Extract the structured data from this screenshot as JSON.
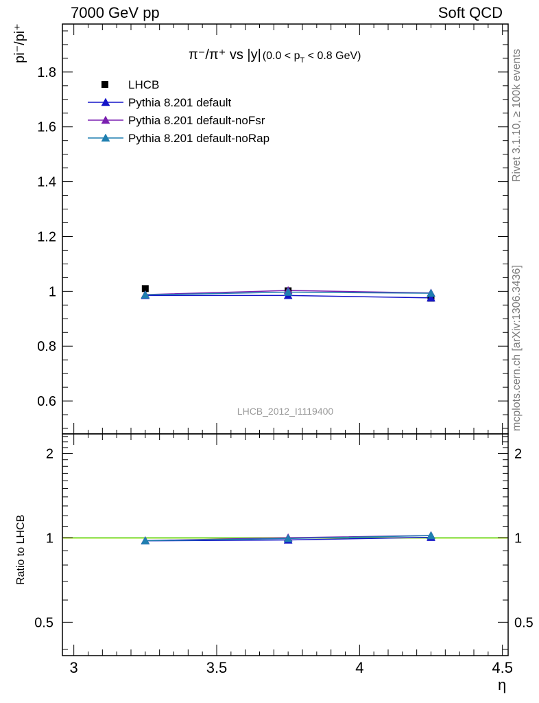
{
  "header": {
    "left": "7000 GeV pp",
    "right": "Soft QCD"
  },
  "side_labels": {
    "rivet": "Rivet 3.1.10, ≥ 100k events",
    "mcplots": "mcplots.cern.ch [arXiv:1306.3436]"
  },
  "plot_title": {
    "main": "π⁻/π⁺ vs |y|",
    "range": "(0.0 < p",
    "range_sub": "T",
    "range_end": " < 0.8 GeV)"
  },
  "analysis_id": "LHCB_2012_I1119400",
  "axes": {
    "ylabel_top": "pi⁻/pi⁺",
    "ylabel_bottom": "Ratio to LHCB",
    "xlabel": "η"
  },
  "colors": {
    "data": "#000000",
    "default": "#1515c8",
    "noFsr": "#7a1fb0",
    "noRap": "#1f7fb0",
    "band_yellow": "#f2f200",
    "band_green": "#50d250"
  },
  "chart_data": [
    {
      "type": "scatter",
      "panel": "main",
      "xlim": [
        2.96,
        4.52
      ],
      "ylim": [
        0.48,
        1.975
      ],
      "yticks": [
        0.6,
        0.8,
        1.0,
        1.2,
        1.4,
        1.6,
        1.8
      ],
      "ytick_labels": [
        "0.6",
        "0.8",
        "1",
        "1.2",
        "1.4",
        "1.6",
        "1.8"
      ],
      "legend": {
        "placement": "top-left"
      },
      "series": [
        {
          "name": "LHCB",
          "marker": "square",
          "color": "#000000",
          "x": [
            3.25,
            3.75,
            4.25
          ],
          "y": [
            1.01,
            1.002,
            0.975
          ]
        },
        {
          "name": "Pythia 8.201 default",
          "marker": "triangle",
          "color": "#1515c8",
          "x": [
            3.25,
            3.75,
            4.25
          ],
          "y": [
            0.985,
            0.985,
            0.976
          ]
        },
        {
          "name": "Pythia 8.201 default-noFsr",
          "marker": "triangle",
          "color": "#7a1fb0",
          "x": [
            3.25,
            3.75,
            4.25
          ],
          "y": [
            0.988,
            1.003,
            0.994
          ]
        },
        {
          "name": "Pythia 8.201 default-noRap",
          "marker": "triangle",
          "color": "#1f7fb0",
          "x": [
            3.25,
            3.75,
            4.25
          ],
          "y": [
            0.987,
            0.997,
            0.993
          ]
        }
      ]
    },
    {
      "type": "line",
      "panel": "ratio",
      "xlim": [
        2.96,
        4.52
      ],
      "ylim": [
        0.38,
        2.35
      ],
      "log_y": true,
      "yticks": [
        0.5,
        1,
        2
      ],
      "ytick_labels": [
        "0.5",
        "1",
        "2"
      ],
      "xticks": [
        3,
        3.5,
        4,
        4.5
      ],
      "xtick_labels": [
        "3",
        "3.5",
        "4",
        "4.5"
      ],
      "series": [
        {
          "name": "Pythia 8.201 default",
          "color": "#1515c8",
          "x": [
            3.25,
            3.75,
            4.25
          ],
          "y": [
            0.976,
            0.983,
            1.005
          ]
        },
        {
          "name": "Pythia 8.201 default-noFsr",
          "color": "#7a1fb0",
          "x": [
            3.25,
            3.75,
            4.25
          ],
          "y": [
            0.978,
            1.001,
            1.02
          ]
        },
        {
          "name": "Pythia 8.201 default-noRap",
          "color": "#1f7fb0",
          "x": [
            3.25,
            3.75,
            4.25
          ],
          "y": [
            0.977,
            0.995,
            1.019
          ]
        }
      ]
    }
  ]
}
